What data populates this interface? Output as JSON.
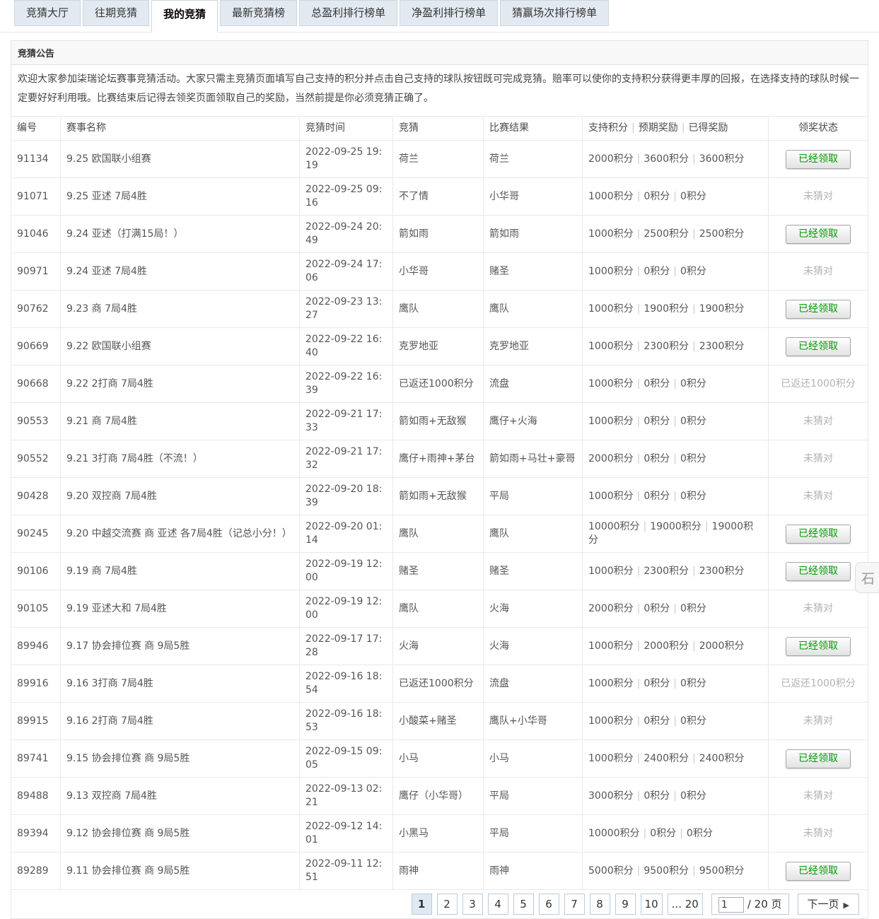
{
  "tabs": {
    "items": [
      {
        "label": "竞猜大厅",
        "active": false
      },
      {
        "label": "往期竞猜",
        "active": false
      },
      {
        "label": "我的竞猜",
        "active": true
      },
      {
        "label": "最新竞猜榜",
        "active": false
      },
      {
        "label": "总盈利排行榜单",
        "active": false
      },
      {
        "label": "净盈利排行榜单",
        "active": false
      },
      {
        "label": "猜赢场次排行榜单",
        "active": false
      }
    ]
  },
  "notice": {
    "title": "竞猜公告",
    "body": "欢迎大家参加柒瑞论坛赛事竞猜活动。大家只需主竞猜页面填写自己支持的积分并点击自己支持的球队按钮既可完成竞猜。赔率可以使你的支持积分获得更丰厚的回报，在选择支持的球队时候一定要好好利用哦。比赛结束后记得去领奖页面领取自己的奖励，当然前提是你必须竞猜正确了。"
  },
  "table": {
    "headers": {
      "id": "编号",
      "name": "赛事名称",
      "time": "竞猜时间",
      "bet": "竞猜",
      "result": "比赛结果",
      "points": [
        "支持积分",
        "预期奖励",
        "已得奖励"
      ],
      "status": "领奖状态"
    },
    "rows": [
      {
        "id": "91134",
        "name": "9.25 欧国联小组赛",
        "time": "2022-09-25 19:19",
        "bet": "荷兰",
        "result": "荷兰",
        "points": [
          "2000积分",
          "3600积分",
          "3600积分"
        ],
        "status_type": "claimed",
        "status_label": "已经领取"
      },
      {
        "id": "91071",
        "name": "9.25 亚述 7局4胜",
        "time": "2022-09-25 09:16",
        "bet": "不了情",
        "result": "小华哥",
        "points": [
          "1000积分",
          "0积分",
          "0积分"
        ],
        "status_type": "wrong",
        "status_label": "未猜对"
      },
      {
        "id": "91046",
        "name": "9.24 亚述（打满15局！）",
        "time": "2022-09-24 20:49",
        "bet": "箭如雨",
        "result": "箭如雨",
        "points": [
          "1000积分",
          "2500积分",
          "2500积分"
        ],
        "status_type": "claimed",
        "status_label": "已经领取"
      },
      {
        "id": "90971",
        "name": "9.24 亚述 7局4胜",
        "time": "2022-09-24 17:06",
        "bet": "小华哥",
        "result": "赌圣",
        "points": [
          "1000积分",
          "0积分",
          "0积分"
        ],
        "status_type": "wrong",
        "status_label": "未猜对"
      },
      {
        "id": "90762",
        "name": "9.23 商 7局4胜",
        "time": "2022-09-23 13:27",
        "bet": "鹰队",
        "result": "鹰队",
        "points": [
          "1000积分",
          "1900积分",
          "1900积分"
        ],
        "status_type": "claimed",
        "status_label": "已经领取"
      },
      {
        "id": "90669",
        "name": "9.22 欧国联小组赛",
        "time": "2022-09-22 16:40",
        "bet": "克罗地亚",
        "result": "克罗地亚",
        "points": [
          "1000积分",
          "2300积分",
          "2300积分"
        ],
        "status_type": "claimed",
        "status_label": "已经领取"
      },
      {
        "id": "90668",
        "name": "9.22 2打商 7局4胜",
        "time": "2022-09-22 16:39",
        "bet": "已返还1000积分",
        "result": "流盘",
        "points": [
          "1000积分",
          "0积分",
          "0积分"
        ],
        "status_type": "refunded",
        "status_label": "已返还1000积分"
      },
      {
        "id": "90553",
        "name": "9.21 商 7局4胜",
        "time": "2022-09-21 17:33",
        "bet": "箭如雨+无敌猴",
        "result": "鹰仔+火海",
        "points": [
          "1000积分",
          "0积分",
          "0积分"
        ],
        "status_type": "wrong",
        "status_label": "未猜对"
      },
      {
        "id": "90552",
        "name": "9.21 3打商 7局4胜（不流！）",
        "time": "2022-09-21 17:32",
        "bet": "鹰仔+雨神+茅台",
        "result": "箭如雨+马壮+豪哥",
        "points": [
          "2000积分",
          "0积分",
          "0积分"
        ],
        "status_type": "wrong",
        "status_label": "未猜对"
      },
      {
        "id": "90428",
        "name": "9.20 双控商 7局4胜",
        "time": "2022-09-20 18:39",
        "bet": "箭如雨+无敌猴",
        "result": "平局",
        "points": [
          "1000积分",
          "0积分",
          "0积分"
        ],
        "status_type": "wrong",
        "status_label": "未猜对"
      },
      {
        "id": "90245",
        "name": "9.20 中越交流赛 商 亚述 各7局4胜（记总小分！）",
        "time": "2022-09-20 01:14",
        "bet": "鹰队",
        "result": "鹰队",
        "points": [
          "10000积分",
          "19000积分",
          "19000积分"
        ],
        "status_type": "claimed",
        "status_label": "已经领取"
      },
      {
        "id": "90106",
        "name": "9.19 商 7局4胜",
        "time": "2022-09-19 12:00",
        "bet": "赌圣",
        "result": "赌圣",
        "points": [
          "1000积分",
          "2300积分",
          "2300积分"
        ],
        "status_type": "claimed",
        "status_label": "已经领取"
      },
      {
        "id": "90105",
        "name": "9.19 亚述大和 7局4胜",
        "time": "2022-09-19 12:00",
        "bet": "鹰队",
        "result": "火海",
        "points": [
          "2000积分",
          "0积分",
          "0积分"
        ],
        "status_type": "wrong",
        "status_label": "未猜对"
      },
      {
        "id": "89946",
        "name": "9.17 协会排位赛 商 9局5胜",
        "time": "2022-09-17 17:28",
        "bet": "火海",
        "result": "火海",
        "points": [
          "1000积分",
          "2000积分",
          "2000积分"
        ],
        "status_type": "claimed",
        "status_label": "已经领取"
      },
      {
        "id": "89916",
        "name": "9.16 3打商 7局4胜",
        "time": "2022-09-16 18:54",
        "bet": "已返还1000积分",
        "result": "流盘",
        "points": [
          "1000积分",
          "0积分",
          "0积分"
        ],
        "status_type": "refunded",
        "status_label": "已返还1000积分"
      },
      {
        "id": "89915",
        "name": "9.16 2打商 7局4胜",
        "time": "2022-09-16 18:53",
        "bet": "小酸菜+赌圣",
        "result": "鹰队+小华哥",
        "points": [
          "1000积分",
          "0积分",
          "0积分"
        ],
        "status_type": "wrong",
        "status_label": "未猜对"
      },
      {
        "id": "89741",
        "name": "9.15 协会排位赛 商 9局5胜",
        "time": "2022-09-15 09:05",
        "bet": "小马",
        "result": "小马",
        "points": [
          "1000积分",
          "2400积分",
          "2400积分"
        ],
        "status_type": "claimed",
        "status_label": "已经领取"
      },
      {
        "id": "89488",
        "name": "9.13 双控商 7局4胜",
        "time": "2022-09-13 02:21",
        "bet": "鹰仔（小华哥）",
        "result": "平局",
        "points": [
          "3000积分",
          "0积分",
          "0积分"
        ],
        "status_type": "wrong",
        "status_label": "未猜对"
      },
      {
        "id": "89394",
        "name": "9.12 协会排位赛 商 9局5胜",
        "time": "2022-09-12 14:01",
        "bet": "小黑马",
        "result": "平局",
        "points": [
          "10000积分",
          "0积分",
          "0积分"
        ],
        "status_type": "wrong",
        "status_label": "未猜对"
      },
      {
        "id": "89289",
        "name": "9.11 协会排位赛 商 9局5胜",
        "time": "2022-09-11 12:51",
        "bet": "雨神",
        "result": "雨神",
        "points": [
          "5000积分",
          "9500积分",
          "9500积分"
        ],
        "status_type": "claimed",
        "status_label": "已经领取"
      }
    ]
  },
  "pagination": {
    "pages": [
      "1",
      "2",
      "3",
      "4",
      "5",
      "6",
      "7",
      "8",
      "9",
      "10",
      "... 20"
    ],
    "current": "1",
    "jump_value": "1",
    "page_total_label": "/ 20 页",
    "next_label": "下一页",
    "next_icon": "▶"
  },
  "side_widget": {
    "glyph": "石"
  },
  "colors": {
    "tab_bg": "#e2e9f1",
    "tab_border": "#ccd6e0",
    "claim_green": "#009900",
    "muted_gray": "#b2b2b2",
    "page_border": "#b9cbde",
    "page_current_bg": "#e0e9f2",
    "table_border": "#e8e8e8"
  }
}
